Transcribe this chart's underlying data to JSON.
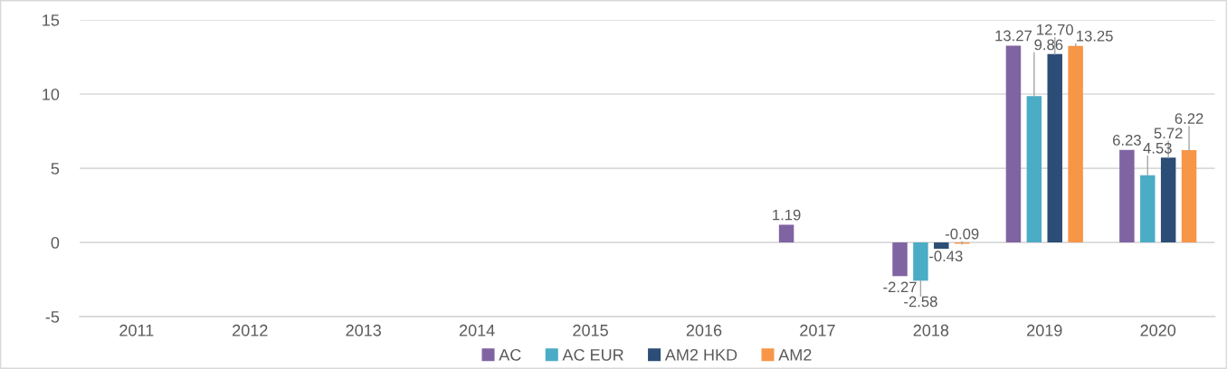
{
  "chart_data": {
    "type": "bar",
    "categories": [
      "2011",
      "2012",
      "2013",
      "2014",
      "2015",
      "2016",
      "2017",
      "2018",
      "2019",
      "2020"
    ],
    "series": [
      {
        "name": "AC",
        "color": "#8064a2",
        "values": [
          null,
          null,
          null,
          null,
          null,
          null,
          1.19,
          -2.27,
          13.27,
          6.23
        ],
        "value_labels": [
          null,
          null,
          null,
          null,
          null,
          null,
          "1.19",
          "-2.27",
          "13.27",
          "6.23"
        ]
      },
      {
        "name": "AC EUR",
        "color": "#4bacc6",
        "values": [
          null,
          null,
          null,
          null,
          null,
          null,
          null,
          -2.58,
          9.86,
          4.53
        ],
        "value_labels": [
          null,
          null,
          null,
          null,
          null,
          null,
          null,
          "-2.58",
          "9.86",
          "4.53"
        ]
      },
      {
        "name": "AM2 HKD",
        "color": "#2c4d75",
        "values": [
          null,
          null,
          null,
          null,
          null,
          null,
          null,
          -0.43,
          12.7,
          5.72
        ],
        "value_labels": [
          null,
          null,
          null,
          null,
          null,
          null,
          null,
          "-0.43",
          "12.70",
          "5.72"
        ]
      },
      {
        "name": "AM2",
        "color": "#f79646",
        "values": [
          null,
          null,
          null,
          null,
          null,
          null,
          null,
          -0.09,
          13.25,
          6.22
        ],
        "value_labels": [
          null,
          null,
          null,
          null,
          null,
          null,
          null,
          "-0.09",
          "13.25",
          "6.22"
        ]
      }
    ],
    "ylim": [
      -5,
      15
    ],
    "yticks": [
      -5,
      0,
      5,
      10,
      15
    ],
    "grid": "y",
    "legend": "bottom"
  }
}
